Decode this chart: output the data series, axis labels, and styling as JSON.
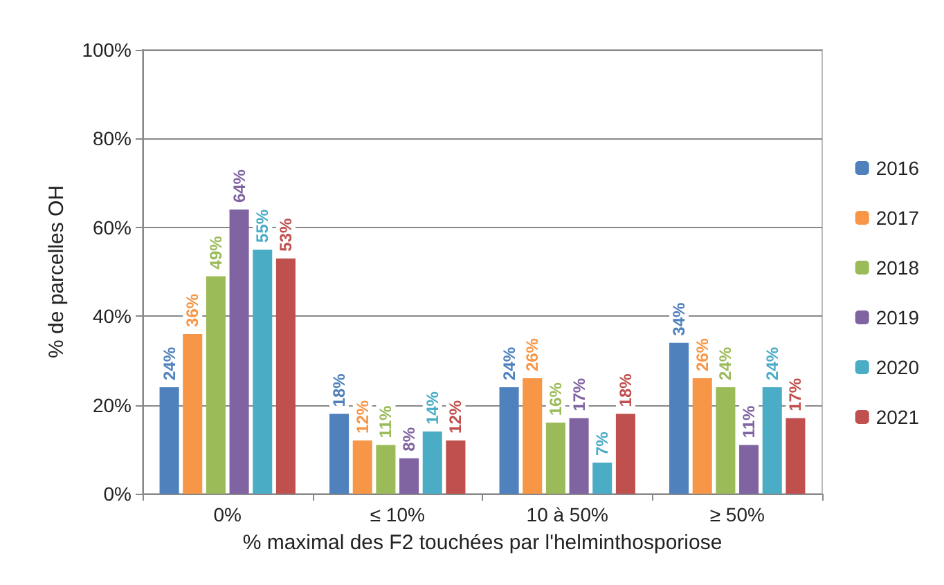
{
  "chart_data": {
    "type": "bar",
    "xlabel": "% maximal des F2 touchées par l'helminthosporiose",
    "ylabel": "% de parcelles OH",
    "categories": [
      "0%",
      "≤ 10%",
      "10 à 50%",
      "≥ 50%"
    ],
    "series": [
      {
        "name": "2016",
        "color": "#4f81bd",
        "values": [
          24,
          18,
          24,
          34
        ],
        "value_labels": [
          "24%",
          "18%",
          "24%",
          "34%"
        ]
      },
      {
        "name": "2017",
        "color": "#f79646",
        "values": [
          36,
          12,
          26,
          26
        ],
        "value_labels": [
          "36%",
          "12%",
          "26%",
          "26%"
        ]
      },
      {
        "name": "2018",
        "color": "#9bbb59",
        "values": [
          49,
          11,
          16,
          24
        ],
        "value_labels": [
          "49%",
          "11%",
          "16%",
          "24%"
        ]
      },
      {
        "name": "2019",
        "color": "#8064a2",
        "values": [
          64,
          8,
          17,
          11
        ],
        "value_labels": [
          "64%",
          "8%",
          "17%",
          "11%"
        ]
      },
      {
        "name": "2020",
        "color": "#4bacc6",
        "values": [
          55,
          14,
          7,
          24
        ],
        "value_labels": [
          "55%",
          "14%",
          "7%",
          "24%"
        ]
      },
      {
        "name": "2021",
        "color": "#c0504d",
        "values": [
          53,
          12,
          18,
          17
        ],
        "value_labels": [
          "53%",
          "12%",
          "18%",
          "17%"
        ]
      }
    ],
    "ylim": [
      0,
      100
    ],
    "yticks": [
      {
        "value": 0,
        "label": "0%"
      },
      {
        "value": 20,
        "label": "20%"
      },
      {
        "value": 40,
        "label": "40%"
      },
      {
        "value": 60,
        "label": "60%"
      },
      {
        "value": 80,
        "label": "80%"
      },
      {
        "value": 100,
        "label": "100%"
      }
    ],
    "grid": "y",
    "legend": "right"
  }
}
